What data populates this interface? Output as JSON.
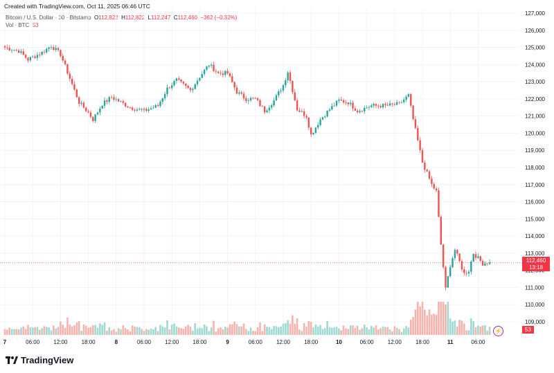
{
  "header": {
    "created_text": "Created with TradingView.com, Oct 11, 2025 06:46 UTC"
  },
  "legend": {
    "symbol": "Bitcoin / U.S. Dollar · 30 · Bitstamp",
    "o_label": "O",
    "o_value": "112,822",
    "h_label": "H",
    "h_value": "112,822",
    "l_label": "L",
    "l_value": "112,247",
    "c_label": "C",
    "c_value": "112,460",
    "change": "−362 (−0.32%)",
    "vol_label": "Vol · BTC",
    "vol_value": "53"
  },
  "price_tag": {
    "price": "112,460",
    "countdown": "13:18"
  },
  "volume_tag": "53",
  "branding": {
    "logo_text": "TradingView"
  },
  "colors": {
    "up": "#26a69a",
    "down": "#ef5350",
    "grid": "#f0f3fa",
    "tag": "#f23645"
  },
  "chart_data": {
    "type": "candlestick",
    "interval": "30",
    "y_ticks": [
      "127,000",
      "126,000",
      "125,000",
      "124,000",
      "123,000",
      "122,000",
      "121,000",
      "120,000",
      "119,000",
      "118,000",
      "117,000",
      "116,000",
      "115,000",
      "114,000",
      "113,000",
      "112,000",
      "111,000",
      "110,000",
      "109,000"
    ],
    "ylim": [
      108600,
      127000
    ],
    "x_ticks": [
      {
        "label": "7",
        "bold": true,
        "i": 0
      },
      {
        "label": "06:00",
        "bold": false,
        "i": 12
      },
      {
        "label": "12:00",
        "bold": false,
        "i": 24
      },
      {
        "label": "18:00",
        "bold": false,
        "i": 36
      },
      {
        "label": "8",
        "bold": true,
        "i": 48
      },
      {
        "label": "06:00",
        "bold": false,
        "i": 60
      },
      {
        "label": "12:00",
        "bold": false,
        "i": 72
      },
      {
        "label": "18:00",
        "bold": false,
        "i": 84
      },
      {
        "label": "9",
        "bold": true,
        "i": 96
      },
      {
        "label": "06:00",
        "bold": false,
        "i": 108
      },
      {
        "label": "12:00",
        "bold": false,
        "i": 120
      },
      {
        "label": "18:00",
        "bold": false,
        "i": 132
      },
      {
        "label": "10",
        "bold": true,
        "i": 144
      },
      {
        "label": "06:00",
        "bold": false,
        "i": 156
      },
      {
        "label": "12:00",
        "bold": false,
        "i": 168
      },
      {
        "label": "18:00",
        "bold": false,
        "i": 180
      },
      {
        "label": "11",
        "bold": true,
        "i": 192
      },
      {
        "label": "06:00",
        "bold": false,
        "i": 204
      }
    ],
    "close_anchors": [
      [
        0,
        125000
      ],
      [
        6,
        124800
      ],
      [
        10,
        124300
      ],
      [
        16,
        124700
      ],
      [
        20,
        125100
      ],
      [
        24,
        124600
      ],
      [
        28,
        123200
      ],
      [
        32,
        121800
      ],
      [
        36,
        121200
      ],
      [
        38,
        120800
      ],
      [
        42,
        121700
      ],
      [
        46,
        122100
      ],
      [
        50,
        121800
      ],
      [
        54,
        121500
      ],
      [
        60,
        121300
      ],
      [
        66,
        121600
      ],
      [
        70,
        122600
      ],
      [
        74,
        123100
      ],
      [
        80,
        122500
      ],
      [
        84,
        123300
      ],
      [
        88,
        124000
      ],
      [
        92,
        123500
      ],
      [
        96,
        123500
      ],
      [
        100,
        122400
      ],
      [
        104,
        122000
      ],
      [
        108,
        122000
      ],
      [
        112,
        121300
      ],
      [
        116,
        121900
      ],
      [
        120,
        122800
      ],
      [
        122,
        123600
      ],
      [
        126,
        121400
      ],
      [
        130,
        121000
      ],
      [
        132,
        119900
      ],
      [
        136,
        120800
      ],
      [
        140,
        121400
      ],
      [
        144,
        121900
      ],
      [
        148,
        121800
      ],
      [
        152,
        121300
      ],
      [
        158,
        121600
      ],
      [
        164,
        121600
      ],
      [
        170,
        121700
      ],
      [
        174,
        122200
      ],
      [
        176,
        120800
      ],
      [
        180,
        118300
      ],
      [
        184,
        117000
      ],
      [
        186,
        116600
      ],
      [
        188,
        113500
      ],
      [
        190,
        110900
      ],
      [
        192,
        112300
      ],
      [
        194,
        113200
      ],
      [
        198,
        111800
      ],
      [
        200,
        112000
      ],
      [
        202,
        113000
      ],
      [
        206,
        112400
      ],
      [
        208,
        112460
      ]
    ],
    "volume_ylim": [
      0,
      60
    ],
    "volume_last": 53,
    "last_price": 112460
  }
}
